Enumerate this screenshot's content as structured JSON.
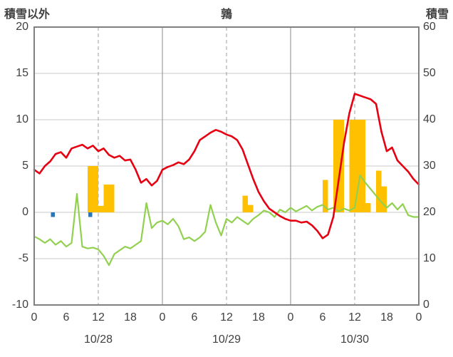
{
  "header": {
    "left_label": "積雪以外",
    "title": "鶉",
    "right_label": "積雪"
  },
  "chart_data": {
    "type": "line+bar",
    "title": "鶉",
    "x_unit": "hour",
    "x_range": [
      0,
      72
    ],
    "left_axis": {
      "label": "積雪以外",
      "range": [
        -10,
        20
      ],
      "ticks": [
        "20",
        "15",
        "10",
        "5",
        "0",
        "-5",
        "-10"
      ]
    },
    "right_axis": {
      "label": "積雪",
      "range": [
        0,
        60
      ],
      "ticks": [
        "60",
        "50",
        "40",
        "30",
        "20",
        "10",
        "0"
      ]
    },
    "x_axis": {
      "tick_interval_hours": 6,
      "tick_labels": [
        "0",
        "6",
        "12",
        "18",
        "0",
        "6",
        "12",
        "18",
        "0",
        "6",
        "12",
        "18",
        "0"
      ],
      "dates": [
        "10/28",
        "10/29",
        "10/30"
      ],
      "solid_gridline_hours": [
        24,
        48
      ],
      "dashed_gridline_hours": [
        12,
        36,
        60
      ]
    },
    "series": [
      {
        "name": "orange-bars",
        "type": "bar",
        "axis": "left",
        "color": "#FFC000",
        "points": [
          {
            "hour": 10,
            "value": 5
          },
          {
            "hour": 11,
            "value": 5
          },
          {
            "hour": 12,
            "value": 0.7
          },
          {
            "hour": 13,
            "value": 3
          },
          {
            "hour": 14,
            "value": 3
          },
          {
            "hour": 39,
            "value": 1.8
          },
          {
            "hour": 40,
            "value": 0.8
          },
          {
            "hour": 54,
            "value": 3.5
          },
          {
            "hour": 56,
            "value": 10
          },
          {
            "hour": 57,
            "value": 10
          },
          {
            "hour": 59,
            "value": 10
          },
          {
            "hour": 60,
            "value": 10
          },
          {
            "hour": 61,
            "value": 10
          },
          {
            "hour": 62,
            "value": 1
          },
          {
            "hour": 64,
            "value": 4.5
          },
          {
            "hour": 65,
            "value": 2.8
          }
        ]
      },
      {
        "name": "blue-bars",
        "type": "bar",
        "axis": "left",
        "color": "#2E75B6",
        "points": [
          {
            "hour": 3,
            "value": -0.5
          },
          {
            "hour": 10,
            "value": -0.5
          }
        ]
      },
      {
        "name": "green-line",
        "type": "line",
        "axis": "left",
        "color": "#92D050",
        "values": [
          -2.6,
          -2.9,
          -3.3,
          -2.9,
          -3.5,
          -3.1,
          -3.7,
          -3.3,
          2.0,
          -3.7,
          -3.9,
          -3.8,
          -4.0,
          -4.7,
          -5.7,
          -4.5,
          -4.1,
          -3.7,
          -3.9,
          -3.5,
          -3.1,
          1.0,
          -1.7,
          -1.1,
          -0.9,
          -1.3,
          -0.7,
          -1.5,
          -2.9,
          -2.7,
          -3.1,
          -2.7,
          -2.1,
          0.8,
          -1.1,
          -2.5,
          -0.7,
          -1.1,
          -0.5,
          -0.9,
          -1.3,
          -0.7,
          -0.3,
          0.2,
          0.0,
          -0.5,
          0.3,
          0.0,
          0.5,
          0.1,
          0.4,
          0.7,
          0.2,
          0.6,
          0.8,
          0.3,
          0.5,
          0.1,
          0.4,
          0.2,
          0.5,
          4.0,
          3.2,
          2.5,
          1.8,
          1.1,
          0.5,
          1.0,
          0.3,
          0.9,
          -0.3,
          -0.5,
          -0.5
        ]
      },
      {
        "name": "red-line",
        "type": "line",
        "axis": "left",
        "color": "#E60012",
        "values": [
          4.6,
          4.2,
          5.0,
          5.5,
          6.3,
          6.5,
          5.9,
          6.9,
          7.1,
          7.3,
          6.9,
          7.2,
          6.6,
          6.9,
          6.2,
          5.9,
          6.1,
          5.6,
          5.7,
          4.6,
          3.2,
          3.6,
          2.9,
          3.4,
          4.6,
          4.9,
          5.1,
          5.4,
          5.2,
          5.7,
          6.6,
          7.8,
          8.2,
          8.6,
          8.9,
          8.7,
          8.4,
          8.2,
          7.8,
          6.8,
          5.2,
          3.6,
          2.2,
          1.2,
          0.4,
          0.0,
          -0.4,
          -0.7,
          -0.9,
          -0.9,
          -1.1,
          -1.0,
          -1.4,
          -2.0,
          -2.8,
          -2.4,
          -0.5,
          3.5,
          7.5,
          10.7,
          12.8,
          12.6,
          12.4,
          12.2,
          11.7,
          8.7,
          6.6,
          7.0,
          5.6,
          5.0,
          4.4,
          3.6,
          3.0
        ]
      }
    ]
  }
}
